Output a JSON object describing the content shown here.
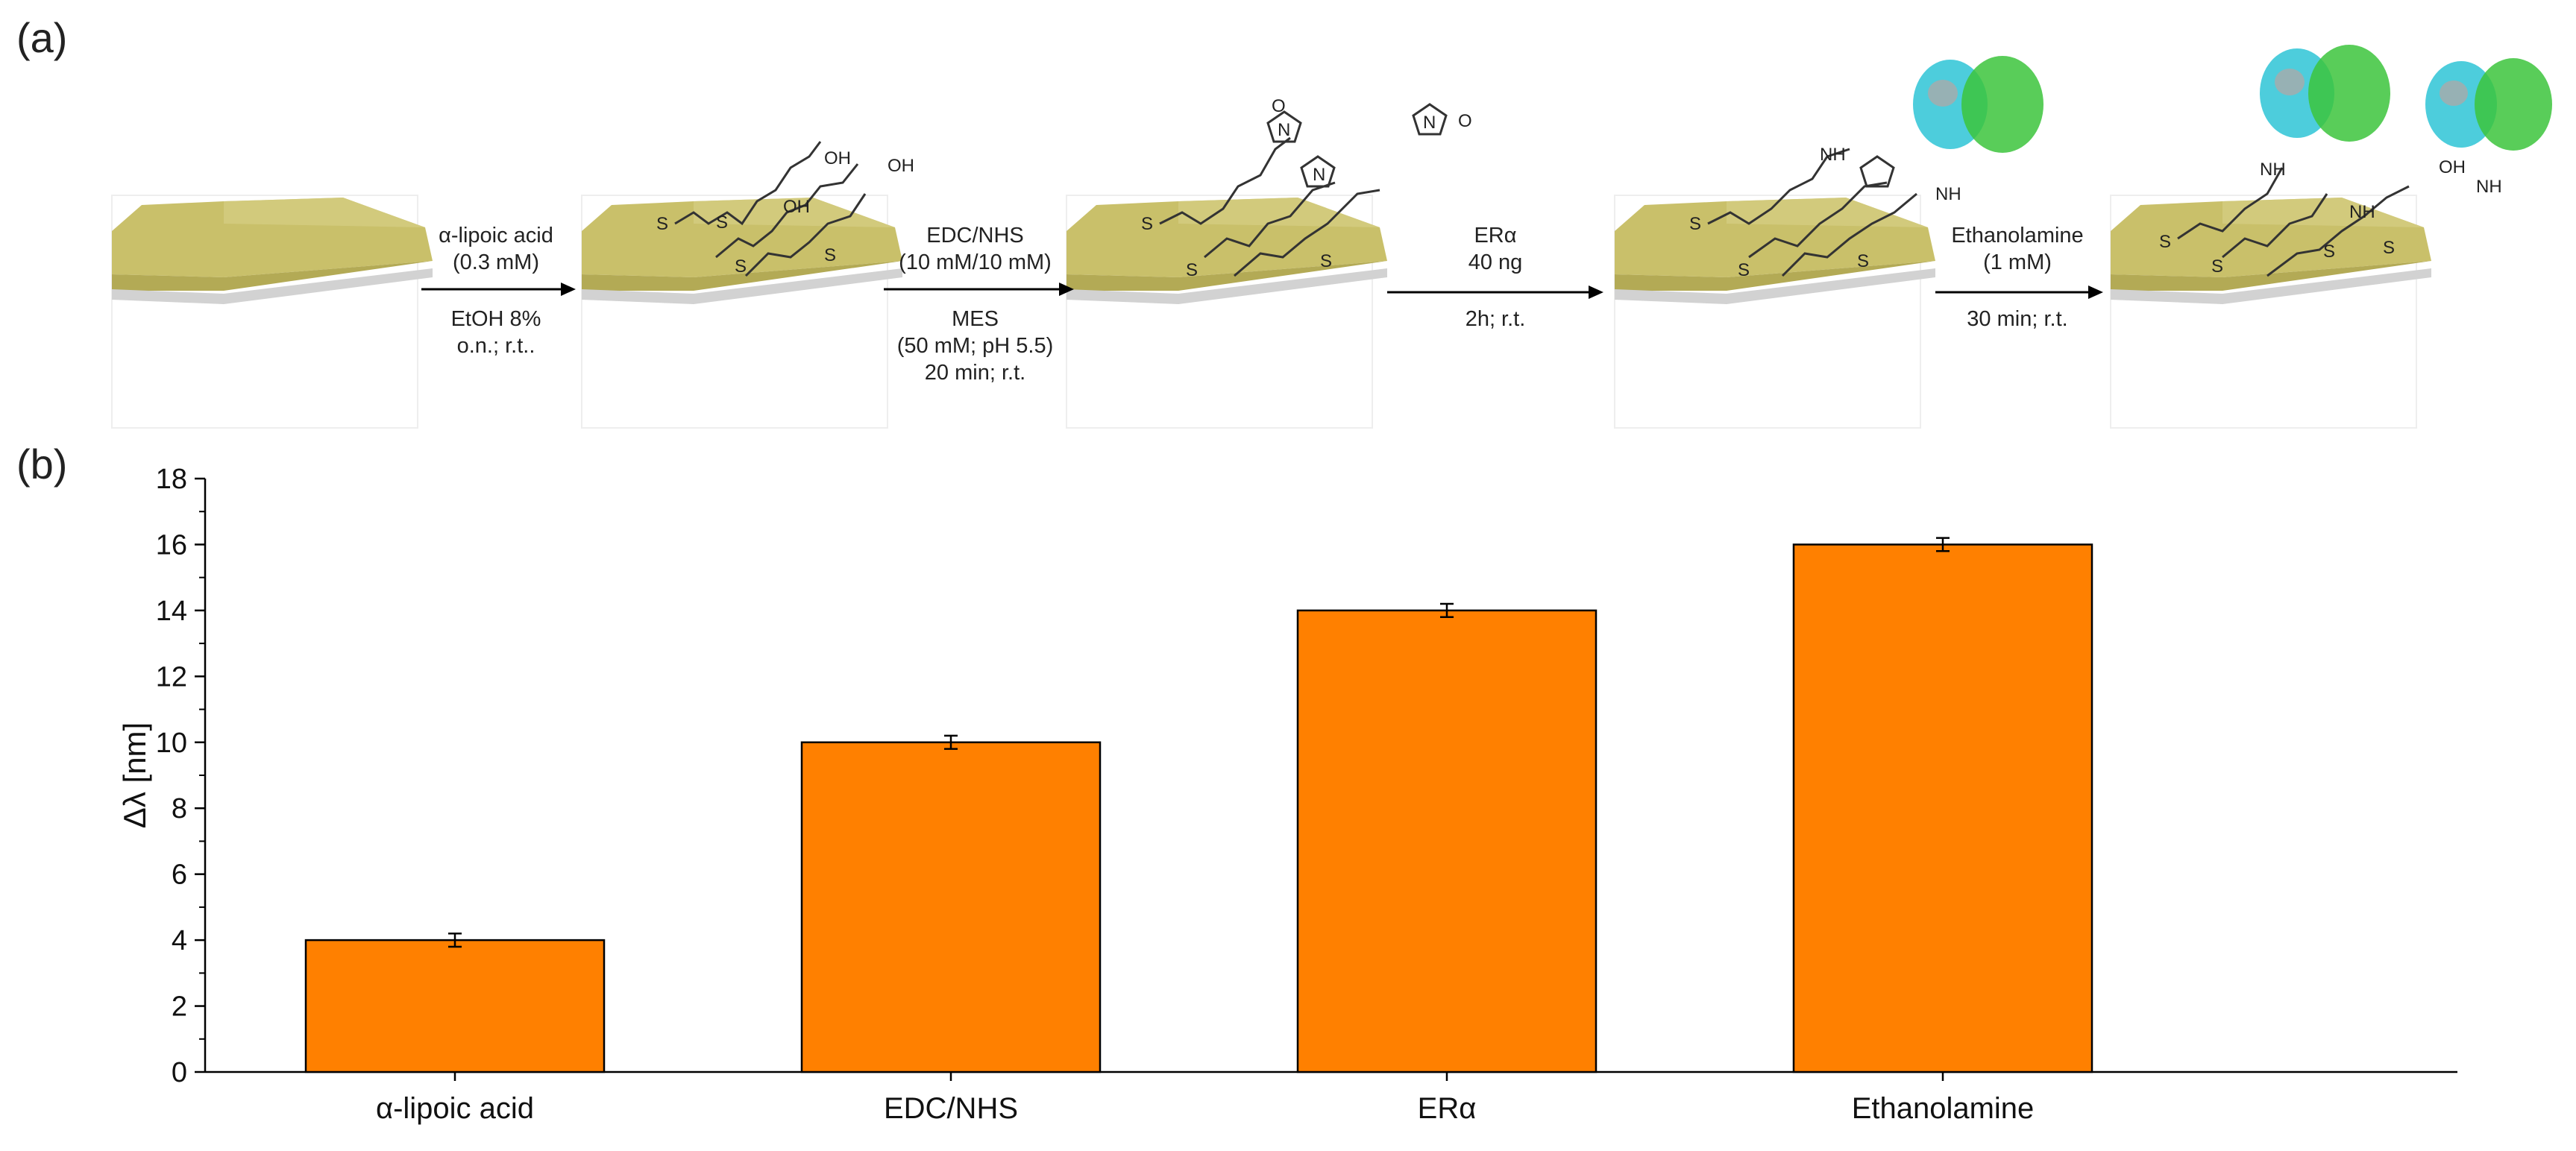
{
  "panels": {
    "a": "(a)",
    "b": "(b)"
  },
  "scheme": {
    "steps": [
      {
        "above": [
          "α-lipoic acid",
          "(0.3 mM)"
        ],
        "below": [
          "EtOH 8%",
          "o.n.; r.t.."
        ]
      },
      {
        "above": [
          "EDC/NHS",
          "(10 mM/10 mM)"
        ],
        "below": [
          "MES",
          "(50 mM; pH 5.5)",
          "20 min; r.t."
        ]
      },
      {
        "above": [
          "ERα",
          "40 ng"
        ],
        "below": [
          "2h; r.t."
        ]
      },
      {
        "above": [
          "Ethanolamine",
          "(1 mM)"
        ],
        "below": [
          "30 min; r.t."
        ]
      }
    ],
    "atoms": {
      "S": "S",
      "OH": "OH",
      "O": "O",
      "N": "N",
      "NH": "NH"
    },
    "colors": {
      "gold_top": "#c9c06a",
      "gold_side": "#b3aa55",
      "gold_base": "#d4d4d4",
      "protein_cyan": "#2ec4d6",
      "protein_green": "#3cc43c"
    }
  },
  "chart_data": {
    "type": "bar",
    "categories": [
      "α-lipoic acid",
      "EDC/NHS",
      "ERα",
      "Ethanolamine"
    ],
    "values": [
      4.0,
      10.0,
      14.0,
      16.0
    ],
    "errors": [
      0.2,
      0.2,
      0.2,
      0.2
    ],
    "title": "",
    "xlabel": "",
    "ylabel": "Δλ [nm]",
    "ylim": [
      0,
      18
    ],
    "yticks": [
      0,
      2,
      4,
      6,
      8,
      10,
      12,
      14,
      16,
      18
    ],
    "grid": false,
    "bar_color": "#ff8000",
    "edge_color": "#000000"
  }
}
